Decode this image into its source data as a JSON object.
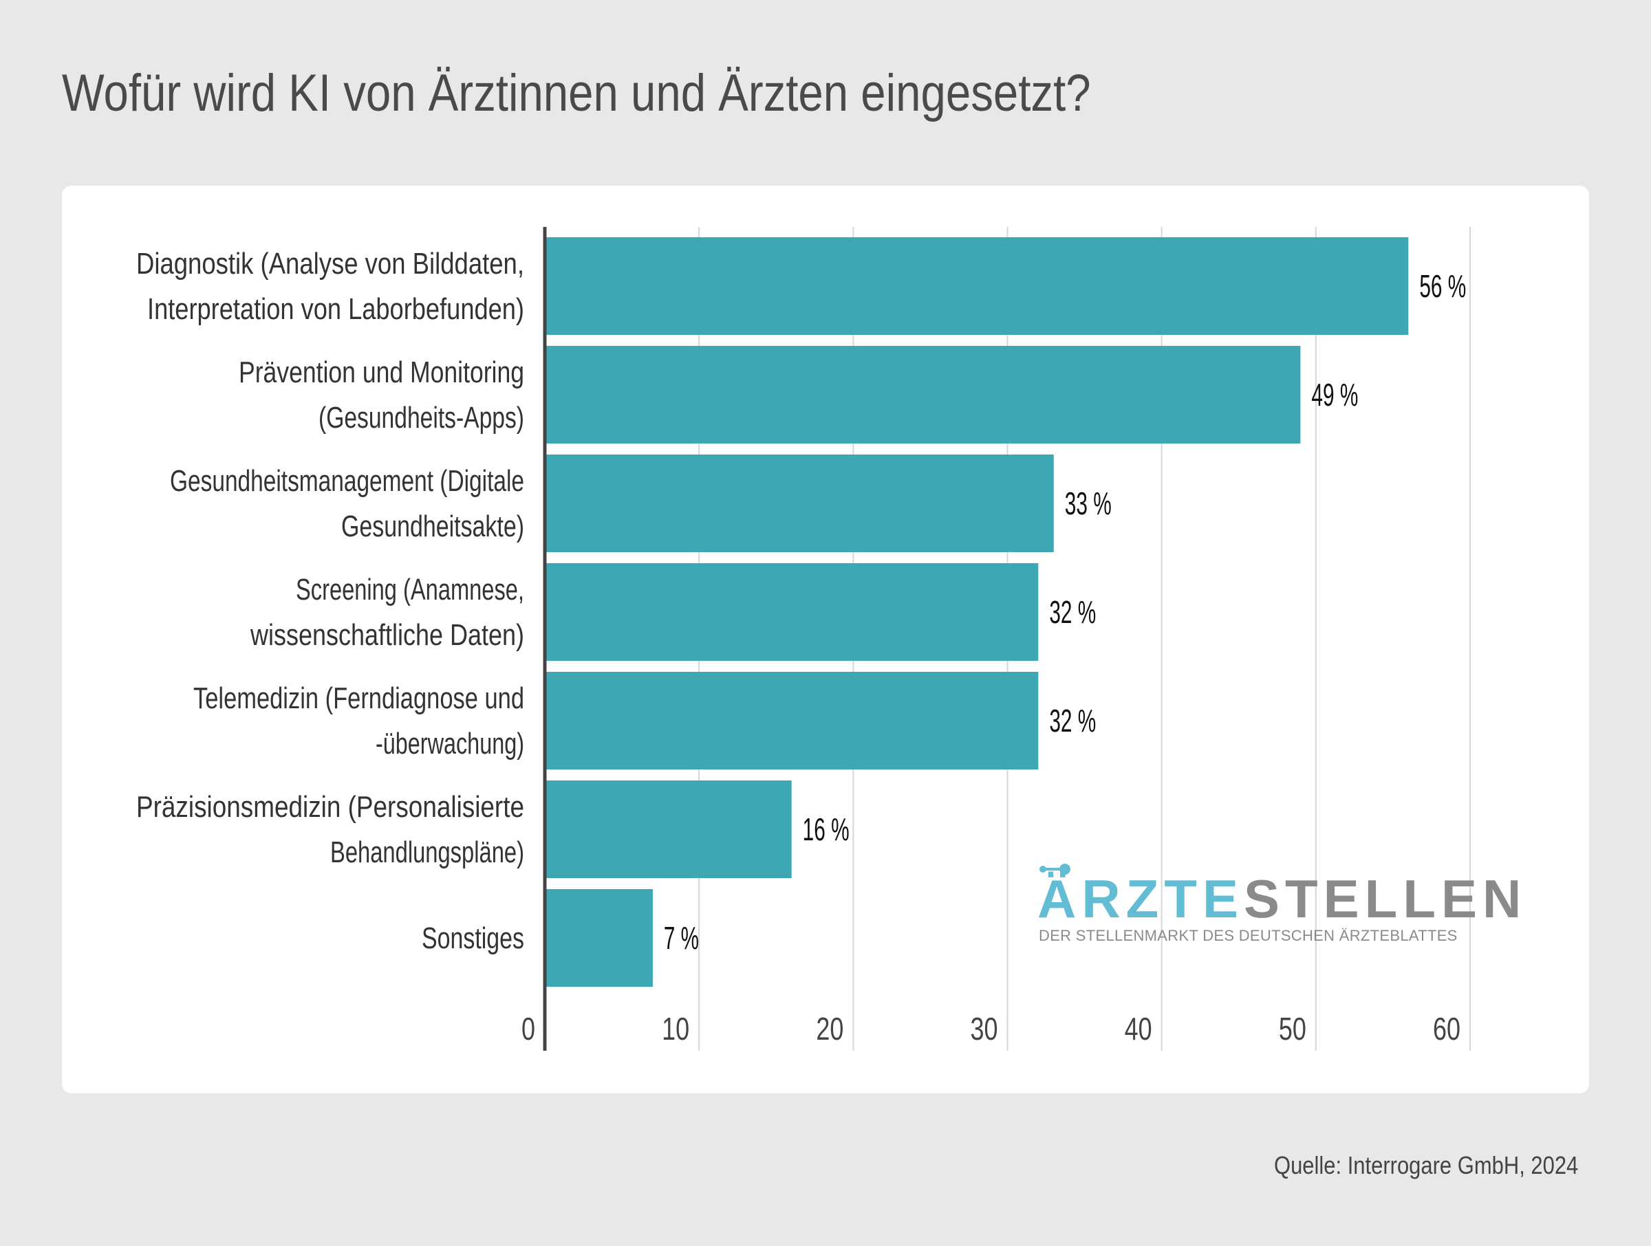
{
  "title": "Wofür wird KI von Ärztinnen und Ärzten eingesetzt?",
  "source": "Quelle: Interrogare GmbH, 2024",
  "logo": {
    "part1": "ÄRZTE",
    "part2": "STELLEN",
    "tagline": "DER STELLENMARKT DES DEUTSCHEN ÄRZTEBLATTES",
    "color1": "#62bcd4",
    "color2": "#8a8a8a"
  },
  "chart_data": {
    "type": "bar",
    "orientation": "horizontal",
    "title": "Wofür wird KI von Ärztinnen und Ärzten eingesetzt?",
    "xlabel": "",
    "ylabel": "",
    "xlim": [
      0,
      60
    ],
    "xticks": [
      0,
      10,
      20,
      30,
      40,
      50,
      60
    ],
    "grid": true,
    "bar_color": "#3da7b4",
    "categories": [
      [
        "Diagnostik (Analyse von Bilddaten,",
        "Interpretation von Laborbefunden)"
      ],
      [
        "Prävention und Monitoring",
        "(Gesundheits-Apps)"
      ],
      [
        "Gesundheitsmanagement (Digitale",
        "Gesundheitsakte)"
      ],
      [
        "Screening (Anamnese,",
        "wissenschaftliche Daten)"
      ],
      [
        "Telemedizin (Ferndiagnose und",
        "-überwachung)"
      ],
      [
        "Präzisionsmedizin (Personalisierte",
        "Behandlungspläne)"
      ],
      [
        "Sonstiges"
      ]
    ],
    "values": [
      56,
      49,
      33,
      32,
      32,
      16,
      7
    ],
    "value_labels": [
      "56 %",
      "49 %",
      "33 %",
      "32 %",
      "32 %",
      "16 %",
      "7 %"
    ]
  }
}
